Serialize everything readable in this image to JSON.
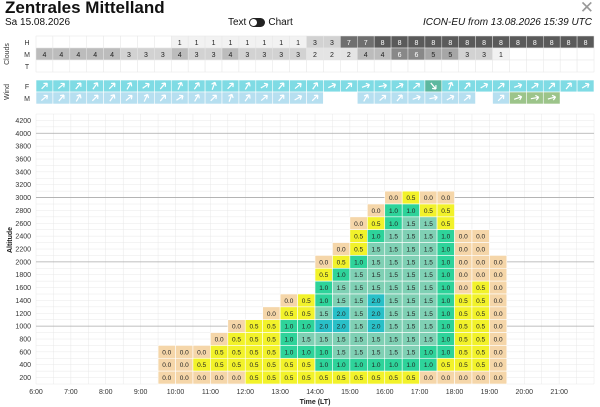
{
  "header": {
    "title": "Zentrales Mittelland",
    "date": "Sa 15.08.2026",
    "toggle_text": "Text",
    "toggle_chart": "Chart",
    "model_info": "ICON-EU from 13.08.2026 15:39 UTC",
    "close_glyph": "✕"
  },
  "clouds": {
    "section_label": "Clouds",
    "rows": [
      {
        "label": "H",
        "values": [
          "",
          "",
          "",
          "",
          "",
          "",
          "",
          "",
          "1",
          "1",
          "1",
          "1",
          "1",
          "1",
          "1",
          "1",
          "3",
          "3",
          "7",
          "7",
          "8",
          "8",
          "8",
          "8",
          "8",
          "8",
          "8",
          "8",
          "8",
          "8",
          "8",
          "8",
          "8"
        ]
      },
      {
        "label": "M",
        "values": [
          "4",
          "4",
          "4",
          "4",
          "4",
          "3",
          "3",
          "3",
          "4",
          "3",
          "3",
          "4",
          "3",
          "3",
          "3",
          "3",
          "2",
          "2",
          "2",
          "4",
          "4",
          "6",
          "6",
          "5",
          "5",
          "3",
          "3",
          "1",
          "",
          "",
          "",
          "",
          ""
        ]
      },
      {
        "label": "T",
        "values": [
          "",
          "",
          "",
          "",
          "",
          "",
          "",
          "",
          "",
          "",
          "",
          "",
          "",
          "",
          "",
          "",
          "",
          "",
          "",
          "",
          "",
          "",
          "",
          "",
          "",
          "",
          "",
          "",
          "",
          "",
          "",
          "",
          ""
        ]
      }
    ],
    "colors": {
      "0": "#ffffff",
      "1": "#f2f2f2",
      "2": "#e4e4e4",
      "3": "#d2d2d2",
      "4": "#bcbcbc",
      "5": "#a6a6a6",
      "6": "#888888",
      "7": "#6f6f6f",
      "8": "#5a5a5a"
    }
  },
  "wind": {
    "section_label": "Wind",
    "rows": [
      {
        "label": "F",
        "cells": [
          {
            "deg": 225,
            "color": "#7fdbe4"
          },
          {
            "deg": 230,
            "color": "#7fdbe4"
          },
          {
            "deg": 220,
            "color": "#7fdbe4"
          },
          {
            "deg": 215,
            "color": "#7fdbe4"
          },
          {
            "deg": 225,
            "color": "#7fdbe4"
          },
          {
            "deg": 210,
            "color": "#7fdbe4"
          },
          {
            "deg": 235,
            "color": "#7fdbe4"
          },
          {
            "deg": 220,
            "color": "#7fdbe4"
          },
          {
            "deg": 205,
            "color": "#7fdbe4"
          },
          {
            "deg": 215,
            "color": "#7fdbe4"
          },
          {
            "deg": 200,
            "color": "#7fdbe4"
          },
          {
            "deg": 225,
            "color": "#7fdbe4"
          },
          {
            "deg": 210,
            "color": "#7fdbe4"
          },
          {
            "deg": 240,
            "color": "#7fdbe4"
          },
          {
            "deg": 220,
            "color": "#7fdbe4"
          },
          {
            "deg": 230,
            "color": "#7fdbe4"
          },
          {
            "deg": 215,
            "color": "#7fdbe4"
          },
          {
            "deg": 245,
            "color": "#7fdbe4"
          },
          {
            "deg": 225,
            "color": "#7fdbe4"
          },
          {
            "deg": 250,
            "color": "#7fdbe4"
          },
          {
            "deg": 260,
            "color": "#7fdbe4"
          },
          {
            "deg": 240,
            "color": "#7fdbe4"
          },
          {
            "deg": 230,
            "color": "#7fdbe4"
          },
          {
            "deg": 320,
            "color": "#5cb89f"
          },
          {
            "deg": 200,
            "color": "#7fdbe4"
          },
          {
            "deg": 220,
            "color": "#7fdbe4"
          },
          {
            "deg": 240,
            "color": "#7fdbe4"
          },
          {
            "deg": 230,
            "color": "#7fdbe4"
          },
          {
            "deg": 250,
            "color": "#7fdbe4"
          },
          {
            "deg": 235,
            "color": "#7fdbe4"
          },
          {
            "deg": 225,
            "color": "#7fdbe4"
          },
          {
            "deg": 220,
            "color": "#7fdbe4"
          },
          {
            "deg": 240,
            "color": "#7fdbe4"
          }
        ]
      },
      {
        "label": "M",
        "cells": [
          {
            "deg": 230,
            "color": "#b6dff0"
          },
          {
            "deg": 220,
            "color": "#b6dff0"
          },
          {
            "deg": 210,
            "color": "#b6dff0"
          },
          {
            "deg": 225,
            "color": "#b6dff0"
          },
          {
            "deg": 215,
            "color": "#b6dff0"
          },
          {
            "deg": 230,
            "color": "#b6dff0"
          },
          {
            "deg": 205,
            "color": "#b6dff0"
          },
          {
            "deg": 220,
            "color": "#b6dff0"
          },
          {
            "deg": 235,
            "color": "#b6dff0"
          },
          {
            "deg": 210,
            "color": "#b6dff0"
          },
          {
            "deg": 225,
            "color": "#b6dff0"
          },
          {
            "deg": 200,
            "color": "#b6dff0"
          },
          {
            "deg": 215,
            "color": "#b6dff0"
          },
          {
            "deg": 230,
            "color": "#b6dff0"
          },
          {
            "deg": 220,
            "color": "#b6dff0"
          },
          {
            "deg": 240,
            "color": "#b6dff0"
          },
          {
            "deg": 225,
            "color": "#b6dff0"
          },
          {
            "deg": 0,
            "color": "#ffffff"
          },
          {
            "deg": 0,
            "color": "#ffffff"
          },
          {
            "deg": 210,
            "color": "#b6dff0"
          },
          {
            "deg": 230,
            "color": "#b6dff0"
          },
          {
            "deg": 220,
            "color": "#b6dff0"
          },
          {
            "deg": 250,
            "color": "#b6dff0"
          },
          {
            "deg": 260,
            "color": "#b6dff0"
          },
          {
            "deg": 240,
            "color": "#b6dff0"
          },
          {
            "deg": 230,
            "color": "#b6dff0"
          },
          {
            "deg": 0,
            "color": "#ffffff"
          },
          {
            "deg": 225,
            "color": "#b6dff0"
          },
          {
            "deg": 250,
            "color": "#9cc48a"
          },
          {
            "deg": 260,
            "color": "#9cc48a"
          },
          {
            "deg": 255,
            "color": "#9cc48a"
          },
          {
            "deg": 0,
            "color": "#ffffff"
          },
          {
            "deg": 0,
            "color": "#ffffff"
          }
        ]
      }
    ]
  },
  "chart_data": {
    "type": "heatmap",
    "title": "",
    "xlabel": "Time (LT)",
    "ylabel": "Altitude",
    "x_ticks": [
      "6:00",
      "7:00",
      "8:00",
      "9:00",
      "10:00",
      "11:00",
      "12:00",
      "13:00",
      "14:00",
      "15:00",
      "16:00",
      "17:00",
      "18:00",
      "19:00",
      "20:00",
      "21:00"
    ],
    "x_range_hours": [
      6,
      22
    ],
    "y_ticks": [
      200,
      400,
      600,
      800,
      1000,
      1200,
      1400,
      1600,
      1800,
      2000,
      2200,
      2400,
      2600,
      2800,
      3000,
      3200,
      3400,
      3600,
      3800,
      4000,
      4200
    ],
    "y_range": [
      100,
      4300
    ],
    "altitude_levels": [
      200,
      400,
      600,
      800,
      1000,
      1200,
      1400,
      1600,
      1800,
      2000,
      2200,
      2400,
      2600,
      2800,
      3000
    ],
    "time_steps": [
      "09:30",
      "10:00",
      "10:30",
      "11:00",
      "11:30",
      "12:00",
      "12:30",
      "13:00",
      "13:30",
      "14:00",
      "14:30",
      "15:00",
      "15:30",
      "16:00",
      "16:30",
      "17:00",
      "17:30",
      "18:00",
      "18:30",
      "19:00"
    ],
    "grid": "on",
    "color_scale": {
      "0.0": "#f5d6a9",
      "0.5": "#f2f22a",
      "1.0": "#2ed39a",
      "1.5": "#7fd0b4",
      "2.0": "#29c0c8"
    },
    "rows": [
      {
        "alt": 3000,
        "values": [
          null,
          null,
          null,
          null,
          null,
          null,
          null,
          null,
          null,
          null,
          null,
          null,
          null,
          "0.0",
          "0.5",
          "0.0",
          "0.0",
          null,
          null,
          null
        ]
      },
      {
        "alt": 2800,
        "values": [
          null,
          null,
          null,
          null,
          null,
          null,
          null,
          null,
          null,
          null,
          null,
          null,
          "0.0",
          "1.0",
          "1.0",
          "0.5",
          "0.5",
          null,
          null,
          null
        ]
      },
      {
        "alt": 2600,
        "values": [
          null,
          null,
          null,
          null,
          null,
          null,
          null,
          null,
          null,
          null,
          null,
          "0.0",
          "0.5",
          "1.0",
          "1.5",
          "1.5",
          "0.5",
          null,
          null,
          null
        ]
      },
      {
        "alt": 2400,
        "values": [
          null,
          null,
          null,
          null,
          null,
          null,
          null,
          null,
          null,
          null,
          null,
          "0.5",
          "1.0",
          "1.5",
          "1.5",
          "1.5",
          "1.0",
          "0.0",
          "0.0",
          null
        ]
      },
      {
        "alt": 2200,
        "values": [
          null,
          null,
          null,
          null,
          null,
          null,
          null,
          null,
          null,
          null,
          "0.0",
          "0.5",
          "1.5",
          "1.5",
          "1.5",
          "1.5",
          "1.0",
          "0.0",
          "0.0",
          null
        ]
      },
      {
        "alt": 2000,
        "values": [
          null,
          null,
          null,
          null,
          null,
          null,
          null,
          null,
          null,
          "0.0",
          "0.5",
          "1.0",
          "1.5",
          "1.5",
          "1.5",
          "1.5",
          "1.0",
          "0.0",
          "0.0",
          "0.0"
        ]
      },
      {
        "alt": 1800,
        "values": [
          null,
          null,
          null,
          null,
          null,
          null,
          null,
          null,
          null,
          "0.5",
          "1.0",
          "1.5",
          "1.5",
          "1.5",
          "1.5",
          "1.5",
          "1.0",
          "0.0",
          "0.0",
          "0.0"
        ]
      },
      {
        "alt": 1600,
        "values": [
          null,
          null,
          null,
          null,
          null,
          null,
          null,
          null,
          null,
          "1.0",
          "1.5",
          "1.5",
          "1.5",
          "1.5",
          "1.5",
          "1.5",
          "1.0",
          "0.0",
          "0.5",
          "0.0"
        ]
      },
      {
        "alt": 1400,
        "values": [
          null,
          null,
          null,
          null,
          null,
          null,
          null,
          "0.0",
          "0.5",
          "1.0",
          "1.5",
          "1.5",
          "2.0",
          "1.5",
          "1.5",
          "1.5",
          "1.0",
          "0.5",
          "0.5",
          "0.0"
        ]
      },
      {
        "alt": 1200,
        "values": [
          null,
          null,
          null,
          null,
          null,
          null,
          "0.0",
          "0.5",
          "0.5",
          "1.5",
          "2.0",
          "1.5",
          "2.0",
          "1.5",
          "1.5",
          "1.5",
          "1.0",
          "0.5",
          "0.5",
          "0.0"
        ]
      },
      {
        "alt": 1000,
        "values": [
          null,
          null,
          null,
          null,
          "0.0",
          "0.5",
          "0.5",
          "1.0",
          "1.0",
          "2.0",
          "2.0",
          "1.5",
          "2.0",
          "1.5",
          "1.5",
          "1.5",
          "1.0",
          "0.5",
          "0.5",
          "0.0"
        ]
      },
      {
        "alt": 800,
        "values": [
          null,
          null,
          null,
          "0.0",
          "0.5",
          "0.5",
          "0.5",
          "1.0",
          "1.5",
          "1.5",
          "1.5",
          "1.5",
          "1.5",
          "1.5",
          "1.5",
          "1.5",
          "1.0",
          "0.5",
          "0.5",
          "0.0"
        ]
      },
      {
        "alt": 600,
        "values": [
          "0.0",
          "0.0",
          "0.0",
          "0.5",
          "0.5",
          "0.5",
          "0.5",
          "1.0",
          "1.0",
          "1.0",
          "1.5",
          "1.5",
          "1.5",
          "1.5",
          "1.5",
          "1.0",
          "1.0",
          "0.5",
          "0.5",
          "0.0"
        ]
      },
      {
        "alt": 400,
        "values": [
          "0.0",
          "0.0",
          "0.5",
          "0.5",
          "0.5",
          "0.5",
          "0.5",
          "0.5",
          "0.5",
          "1.0",
          "1.0",
          "1.0",
          "1.0",
          "1.0",
          "1.0",
          "1.0",
          "0.5",
          "0.5",
          "0.5",
          "0.0"
        ]
      },
      {
        "alt": 200,
        "values": [
          "0.0",
          "0.0",
          "0.0",
          "0.0",
          "0.0",
          "0.5",
          "0.5",
          "0.5",
          "0.5",
          "0.5",
          "0.5",
          "0.5",
          "0.5",
          "0.5",
          "0.5",
          "0.0",
          "0.0",
          "0.0",
          "0.0",
          "0.0"
        ]
      }
    ]
  }
}
